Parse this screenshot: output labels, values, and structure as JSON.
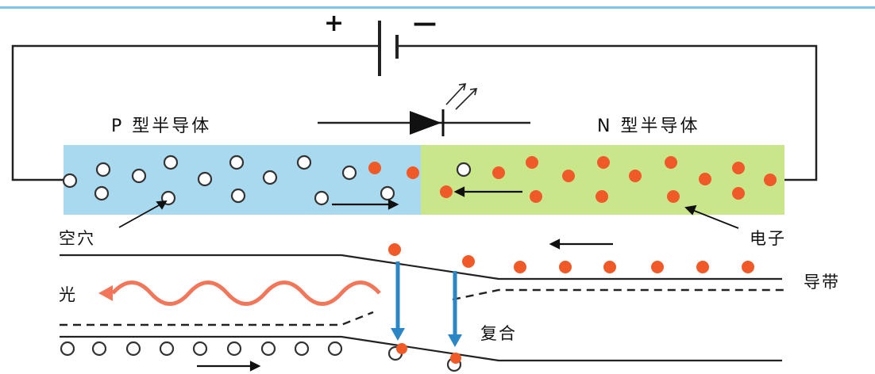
{
  "battery": {
    "plus": "+",
    "minus": "—"
  },
  "labels": {
    "p_type": "P 型半导体",
    "n_type": "N 型半导体",
    "hole": "空穴",
    "electron": "电子",
    "light": "光",
    "conduction_band": "导带",
    "recombination": "复合"
  },
  "colors": {
    "p_region": "#a9d9ef",
    "n_region": "#c9e68a",
    "electron": "#f05a28",
    "recombination_arrow": "#2b86c6",
    "light_wave": "#f2765a",
    "top_rule": "#7ec3e8"
  },
  "icons": [
    "diode-symbol-icon",
    "light-emission-arrows-icon",
    "battery-icon"
  ]
}
